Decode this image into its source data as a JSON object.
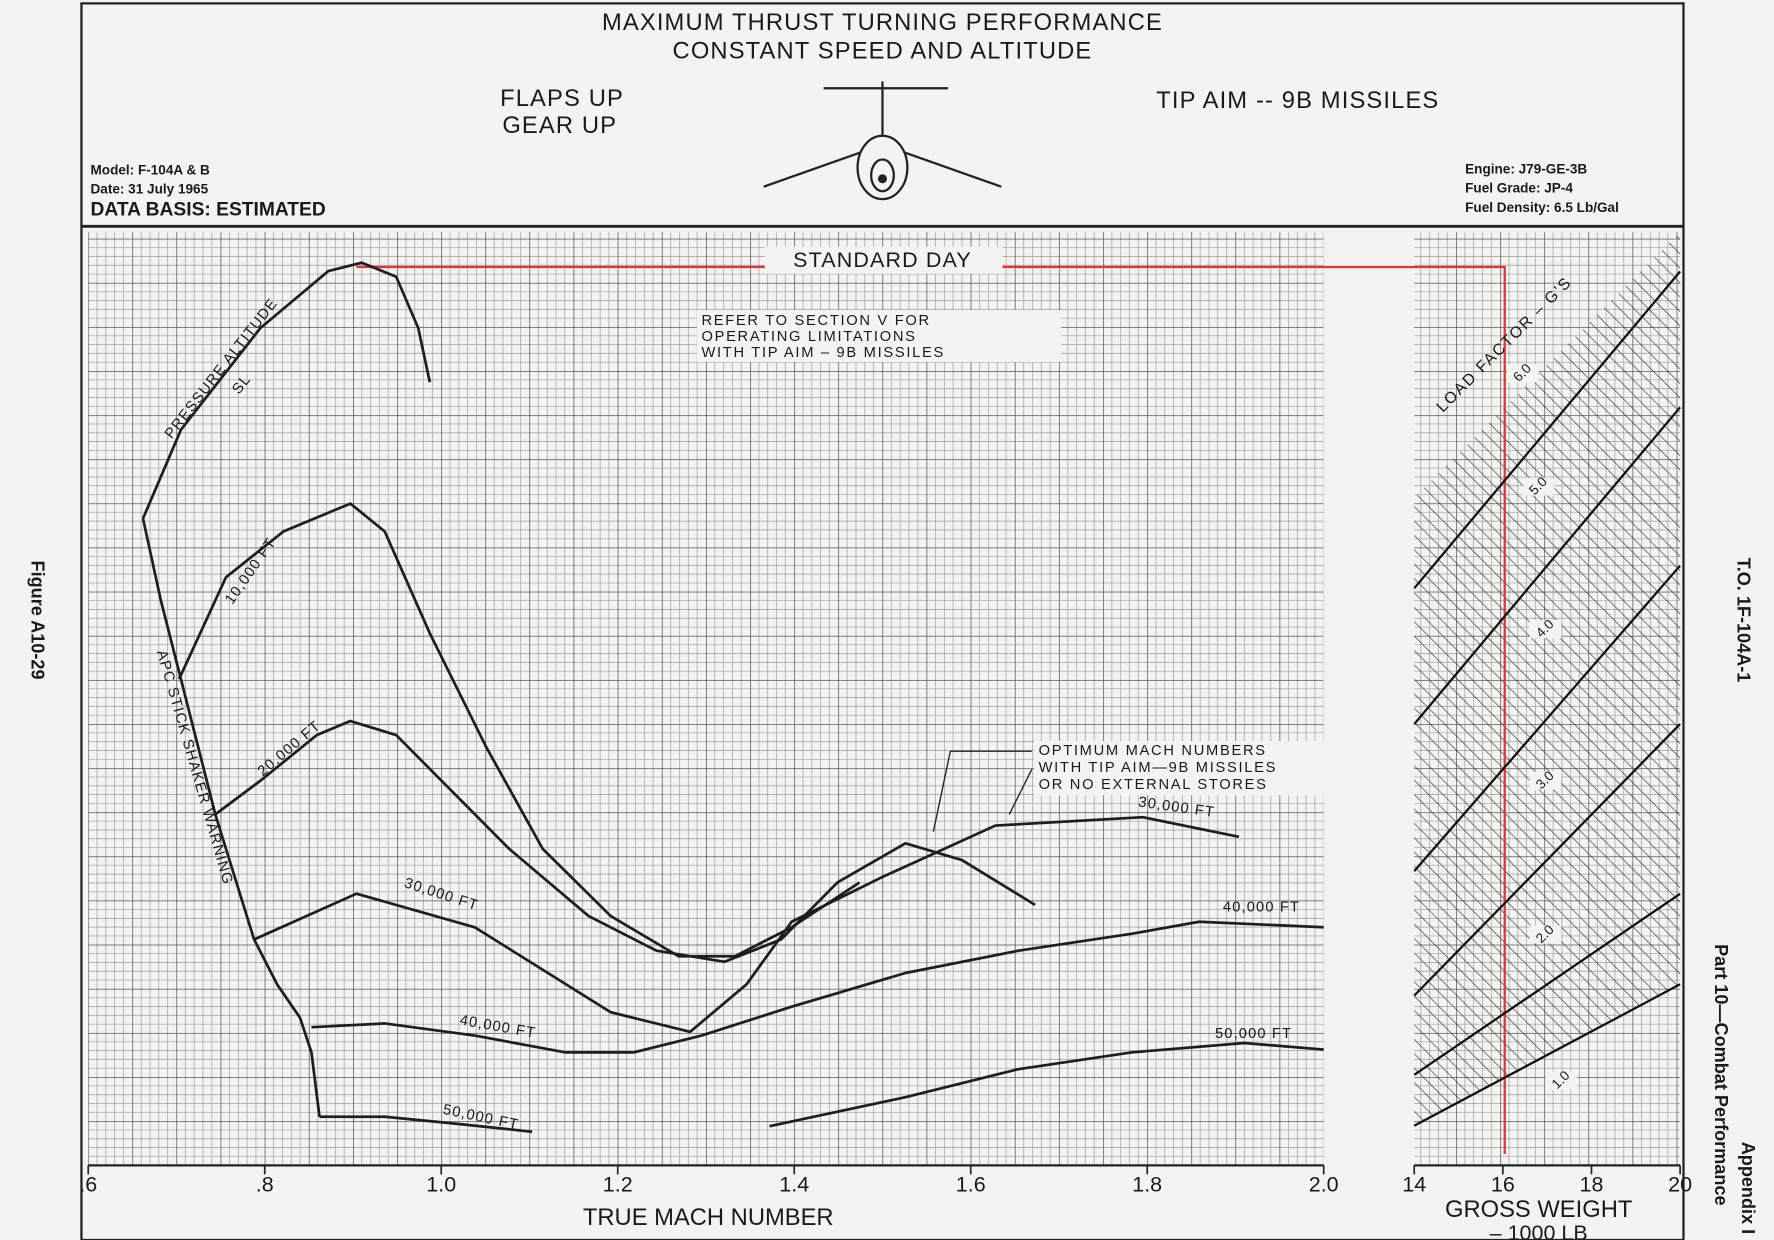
{
  "page": {
    "figure": "Figure A10-29",
    "to_number": "T.O. 1F-104A-1",
    "part": "Part 10—Combat Performance",
    "appendix": "Appendix I"
  },
  "chart_data": {
    "type": "line",
    "title": "MAXIMUM THRUST TURNING PERFORMANCE",
    "subtitle": "CONSTANT SPEED AND ALTITUDE",
    "config_1": "FLAPS UP",
    "config_2": "GEAR UP",
    "stores": "TIP AIM -- 9B MISSILES",
    "model": "Model:  F-104A & B",
    "date": "Date:  31 July 1965",
    "data_basis": "DATA BASIS:  ESTIMATED",
    "engine": "Engine:  J79-GE-3B",
    "fuel_grade": "Fuel Grade:  JP-4",
    "fuel_density": "Fuel Density:  6.5 Lb/Gal",
    "annotation_day": "STANDARD DAY",
    "note_refer": [
      "REFER  TO  SECTION  V  FOR",
      "OPERATING  LIMITATIONS",
      "WITH  TIP  AIM  –  9B  MISSILES"
    ],
    "note_optimum": [
      "OPTIMUM  MACH  NUMBERS",
      "WITH  TIP  AIM—9B  MISSILES",
      "OR  NO  EXTERNAL  STORES"
    ],
    "altitude_label": "PRESSURE  ALTITUDE",
    "curve_labels": [
      "30,000  FT",
      "40,000  FT",
      "50,000  FT"
    ],
    "load_factor_label": "LOAD  FACTOR  –  G'S",
    "load_factor_values": [
      "1.0",
      "2.0",
      "3.0",
      "4.0",
      "5.0",
      "6.0"
    ],
    "xlabel": "TRUE  MACH  NUMBER",
    "xlim": [
      0.6,
      2.0
    ],
    "xticks": [
      {
        "value": 0.6,
        "label": ".6"
      },
      {
        "value": 0.8,
        "label": ".8"
      },
      {
        "value": 1,
        "label": "1.0"
      },
      1.2,
      1.4,
      1.6,
      1.8,
      {
        "value": 2,
        "label": "2.0"
      }
    ],
    "x2label": "GROSS  WEIGHT",
    "x2label_unit": "–  1000  LB",
    "x2lim": [
      14,
      20
    ],
    "x2ticks": [
      14,
      16,
      18,
      20
    ],
    "ylim": [
      0,
      100
    ],
    "grid": true,
    "series": [
      {
        "name": "SL",
        "color": "#1e1e1e",
        "x": [
          0.662,
          0.705,
          0.795,
          0.872,
          0.91,
          0.949,
          0.974,
          0.987
        ],
        "values": [
          69.3,
          78.8,
          89.7,
          95.8,
          96.7,
          95.2,
          89.7,
          83.9
        ]
      },
      {
        "name": "10,000  FT",
        "color": "#1e1e1e",
        "x": [
          0.703,
          0.756,
          0.821,
          0.897,
          0.936,
          0.987,
          1.051,
          1.115,
          1.192,
          1.269,
          1.333,
          1.397,
          1.474
        ],
        "values": [
          52.1,
          63.0,
          67.9,
          70.9,
          67.9,
          57.0,
          44.8,
          33.9,
          26.7,
          22.4,
          22.4,
          25.5,
          30.3
        ]
      },
      {
        "name": "20,000  FT",
        "color": "#1e1e1e",
        "x": [
          0.744,
          0.795,
          0.859,
          0.897,
          0.949,
          1.013,
          1.077,
          1.167,
          1.244,
          1.321,
          1.385,
          1.449,
          1.526,
          1.59,
          1.673
        ],
        "values": [
          37.6,
          41.2,
          46.1,
          47.6,
          46.1,
          40.0,
          33.9,
          26.7,
          23.0,
          21.8,
          24.2,
          30.3,
          34.5,
          32.7,
          27.9
        ]
      },
      {
        "name": "30,000  FT",
        "color": "#1e1e1e",
        "x": [
          0.788,
          0.904,
          1.038,
          1.192,
          1.282,
          1.346,
          1.397,
          1.5,
          1.628,
          1.795,
          1.904
        ],
        "values": [
          24.2,
          29.1,
          25.5,
          16.4,
          14.3,
          19.4,
          26.1,
          30.9,
          36.4,
          37.3,
          35.2
        ]
      },
      {
        "name": "40,000  FT",
        "color": "#1e1e1e",
        "x": [
          0.853,
          0.936,
          1.038,
          1.141,
          1.218,
          1.295,
          1.397,
          1.526,
          1.654,
          1.782,
          1.859,
          2.0
        ],
        "values": [
          14.8,
          15.2,
          13.9,
          12.1,
          12.1,
          13.9,
          17.0,
          20.6,
          23.0,
          24.8,
          26.1,
          25.5
        ]
      },
      {
        "name": "50,000  FT",
        "color": "#1e1e1e",
        "x": [
          0.862,
          0.936,
          1.013,
          1.103,
          null,
          1.372,
          1.526,
          1.654,
          1.782,
          1.91,
          2.0
        ],
        "values": [
          5.2,
          5.2,
          4.5,
          3.6,
          null,
          4.2,
          7.3,
          10.3,
          12.1,
          13.1,
          12.4
        ]
      },
      {
        "name": "APC  STICK  SHAKER  WARNING",
        "color": "#1e1e1e",
        "x": [
          0.662,
          0.682,
          0.705,
          0.744,
          0.788,
          0.814,
          0.84,
          0.853,
          0.862
        ],
        "values": [
          69.3,
          60.6,
          52.1,
          37.6,
          24.2,
          19.4,
          15.8,
          12.1,
          5.2
        ]
      }
    ]
  }
}
